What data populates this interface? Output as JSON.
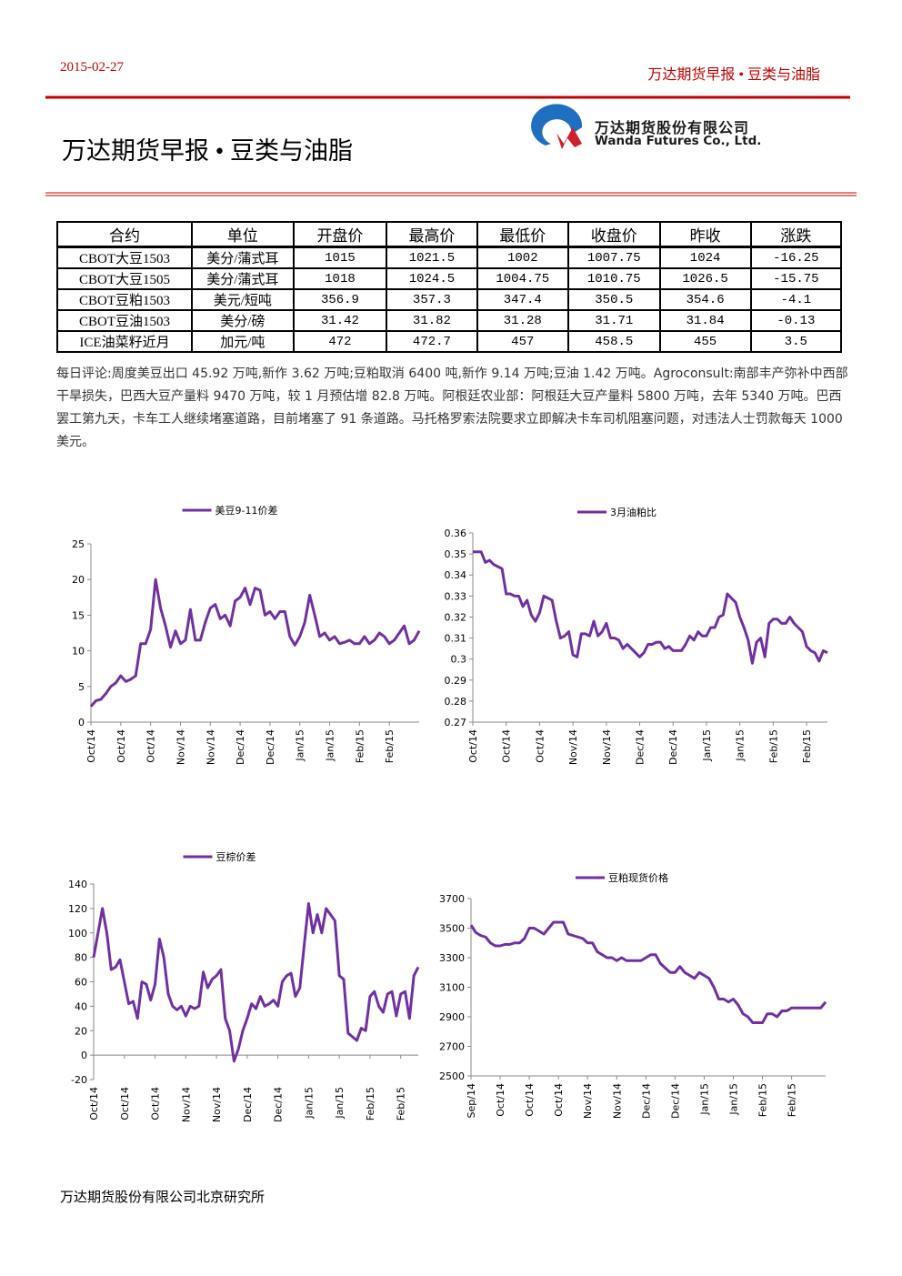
{
  "header": {
    "date": "2015-02-27",
    "right_title": "万达期货早报 • 豆类与油脂"
  },
  "title": "万达期货早报 • 豆类与油脂",
  "logo": {
    "cn": "万达期货股份有限公司",
    "en": "Wanda Futures Co., Ltd."
  },
  "table": {
    "header": [
      "合约",
      "单位",
      "开盘价",
      "最高价",
      "最低价",
      "收盘价",
      "昨收",
      "涨跌"
    ],
    "rows": [
      [
        "CBOT大豆1503",
        "美分/蒲式耳",
        1015,
        1021.5,
        1002,
        1007.75,
        1024,
        -16.25
      ],
      [
        "CBOT大豆1505",
        "美分/蒲式耳",
        1018,
        1024.5,
        1004.75,
        1010.75,
        1026.5,
        -15.75
      ],
      [
        "CBOT豆粕1503",
        "美元/短吨",
        356.9,
        357.3,
        347.4,
        350.5,
        354.6,
        -4.1
      ],
      [
        "CBOT豆油1503",
        "美分/磅",
        31.42,
        31.82,
        31.28,
        31.71,
        31.84,
        -0.13
      ],
      [
        "ICE油菜籽近月",
        "加元/吨",
        472,
        472.7,
        457,
        458.5,
        455,
        3.5
      ]
    ]
  },
  "commentary": "每日评论:周度美豆出口 45.92 万吨,新作 3.62 万吨;豆粕取消 6400 吨,新作 9.14 万吨;豆油 1.42 万吨。Agroconsult:南部丰产弥补中西部干旱损失，巴西大豆产量料 9470 万吨，较 1 月预估增 82.8 万吨。阿根廷农业部：阿根廷大豆产量料 5800 万吨，去年 5340 万吨。巴西罢工第九天，卡车工人继续堵塞道路，目前堵塞了 91 条道路。马托格罗索法院要求立即解决卡车司机阻塞问题，对违法人士罚款每天 1000 美元。",
  "chart_data": [
    {
      "type": "line",
      "legend": "top",
      "series": [
        {
          "name": "美豆9-11价差",
          "color": "#7030a0",
          "values": [
            2.2,
            3,
            3.2,
            4,
            5,
            5.5,
            6.5,
            5.7,
            6,
            6.5,
            11,
            11,
            13,
            20,
            16,
            13.5,
            10.5,
            12.8,
            11,
            11.5,
            15.8,
            11.5,
            11.5,
            14,
            16,
            16.5,
            14.5,
            15,
            13.5,
            17,
            17.5,
            18.8,
            16.5,
            18.8,
            18.5,
            15,
            15.5,
            14.5,
            15.5,
            15.5,
            12,
            10.8,
            12,
            14,
            17.8,
            15,
            12,
            12.5,
            11.5,
            12,
            11,
            11.2,
            11.5,
            11,
            11,
            12,
            11,
            11.5,
            12.5,
            12,
            11,
            11.5,
            12.5,
            13.5,
            11,
            11.5,
            12.8
          ]
        }
      ],
      "xlim": [
        0,
        66
      ],
      "xticks": [
        {
          "value": 0,
          "label": "Oct/14"
        },
        {
          "value": 6,
          "label": "Oct/14"
        },
        {
          "value": 12,
          "label": "Oct/14"
        },
        {
          "value": 18,
          "label": "Nov/14"
        },
        {
          "value": 24,
          "label": "Nov/14"
        },
        {
          "value": 30,
          "label": "Dec/14"
        },
        {
          "value": 36,
          "label": "Dec/14"
        },
        {
          "value": 42,
          "label": "Jan/15"
        },
        {
          "value": 48,
          "label": "Jan/15"
        },
        {
          "value": 54,
          "label": "Feb/15"
        },
        {
          "value": 60,
          "label": "Feb/15"
        }
      ],
      "ylim": [
        0,
        25
      ],
      "yticks": [
        0,
        5,
        10,
        15,
        20,
        25
      ]
    },
    {
      "type": "line",
      "legend": "top",
      "series": [
        {
          "name": "3月油粕比",
          "color": "#7030a0",
          "values": [
            0.351,
            0.351,
            0.351,
            0.346,
            0.347,
            0.345,
            0.344,
            0.343,
            0.331,
            0.331,
            0.33,
            0.33,
            0.325,
            0.328,
            0.321,
            0.318,
            0.322,
            0.33,
            0.329,
            0.328,
            0.318,
            0.31,
            0.311,
            0.313,
            0.302,
            0.301,
            0.312,
            0.312,
            0.311,
            0.318,
            0.311,
            0.313,
            0.317,
            0.31,
            0.31,
            0.309,
            0.305,
            0.307,
            0.305,
            0.303,
            0.301,
            0.303,
            0.307,
            0.307,
            0.308,
            0.308,
            0.305,
            0.306,
            0.304,
            0.304,
            0.304,
            0.307,
            0.311,
            0.309,
            0.313,
            0.311,
            0.311,
            0.315,
            0.315,
            0.32,
            0.321,
            0.331,
            0.329,
            0.327,
            0.32,
            0.315,
            0.309,
            0.298,
            0.308,
            0.31,
            0.301,
            0.317,
            0.319,
            0.319,
            0.317,
            0.317,
            0.32,
            0.317,
            0.315,
            0.313,
            0.306,
            0.304,
            0.303,
            0.299,
            0.304,
            0.303
          ]
        }
      ],
      "xlim": [
        0,
        85
      ],
      "xticks": [
        {
          "value": 0,
          "label": "Oct/14"
        },
        {
          "value": 8,
          "label": "Oct/14"
        },
        {
          "value": 16,
          "label": "Oct/14"
        },
        {
          "value": 24,
          "label": "Nov/14"
        },
        {
          "value": 32,
          "label": "Nov/14"
        },
        {
          "value": 40,
          "label": "Dec/14"
        },
        {
          "value": 48,
          "label": "Dec/14"
        },
        {
          "value": 56,
          "label": "Jan/15"
        },
        {
          "value": 64,
          "label": "Jan/15"
        },
        {
          "value": 72,
          "label": "Feb/15"
        },
        {
          "value": 80,
          "label": "Feb/15"
        }
      ],
      "ylim": [
        0.27,
        0.36
      ],
      "yticks": [
        0.27,
        0.28,
        0.29,
        0.3,
        0.31,
        0.32,
        0.33,
        0.34,
        0.35,
        0.36
      ]
    },
    {
      "type": "line",
      "legend": "top",
      "series": [
        {
          "name": "豆棕价差",
          "color": "#7030a0",
          "values": [
            80,
            100,
            120,
            100,
            70,
            72,
            78,
            60,
            42,
            44,
            30,
            60,
            58,
            45,
            58,
            95,
            80,
            50,
            40,
            37,
            40,
            32,
            40,
            38,
            40,
            68,
            55,
            62,
            65,
            70,
            30,
            20,
            -5,
            5,
            20,
            30,
            42,
            38,
            48,
            40,
            42,
            45,
            40,
            60,
            65,
            67,
            48,
            55,
            90,
            124,
            100,
            115,
            100,
            120,
            115,
            110,
            65,
            62,
            18,
            15,
            12,
            22,
            20,
            48,
            52,
            40,
            35,
            50,
            52,
            32,
            50,
            52,
            30,
            65,
            72
          ]
        }
      ],
      "xlim": [
        0,
        74
      ],
      "xticks": [
        {
          "value": 0,
          "label": "Oct/14"
        },
        {
          "value": 7,
          "label": "Oct/14"
        },
        {
          "value": 14,
          "label": "Oct/14"
        },
        {
          "value": 21,
          "label": "Nov/14"
        },
        {
          "value": 28,
          "label": "Nov/14"
        },
        {
          "value": 35,
          "label": "Dec/14"
        },
        {
          "value": 42,
          "label": "Dec/14"
        },
        {
          "value": 49,
          "label": "Jan/15"
        },
        {
          "value": 56,
          "label": "Jan/15"
        },
        {
          "value": 63,
          "label": "Feb/15"
        },
        {
          "value": 70,
          "label": "Feb/15"
        }
      ],
      "ylim": [
        -20,
        140
      ],
      "yticks": [
        -20,
        0,
        20,
        40,
        60,
        80,
        100,
        120,
        140
      ]
    },
    {
      "type": "line",
      "legend": "top",
      "series": [
        {
          "name": "豆粕现货价格",
          "color": "#7030a0",
          "values": [
            3520,
            3470,
            3450,
            3440,
            3400,
            3380,
            3380,
            3390,
            3390,
            3400,
            3400,
            3430,
            3500,
            3500,
            3480,
            3460,
            3500,
            3540,
            3540,
            3540,
            3460,
            3450,
            3440,
            3430,
            3400,
            3400,
            3340,
            3320,
            3300,
            3300,
            3280,
            3300,
            3280,
            3280,
            3280,
            3280,
            3300,
            3320,
            3320,
            3260,
            3230,
            3200,
            3200,
            3240,
            3200,
            3180,
            3160,
            3200,
            3180,
            3160,
            3100,
            3020,
            3020,
            3000,
            3020,
            2980,
            2920,
            2900,
            2860,
            2860,
            2860,
            2920,
            2920,
            2900,
            2940,
            2940,
            2960,
            2960,
            2960,
            2960,
            2960,
            2960,
            2960,
            3000
          ]
        }
      ],
      "xlim": [
        0,
        73
      ],
      "xticks": [
        {
          "value": 0,
          "label": "Sep/14"
        },
        {
          "value": 6,
          "label": "Oct/14"
        },
        {
          "value": 12,
          "label": "Oct/14"
        },
        {
          "value": 18,
          "label": "Oct/14"
        },
        {
          "value": 24,
          "label": "Nov/14"
        },
        {
          "value": 30,
          "label": "Nov/14"
        },
        {
          "value": 36,
          "label": "Dec/14"
        },
        {
          "value": 42,
          "label": "Dec/14"
        },
        {
          "value": 48,
          "label": "Jan/15"
        },
        {
          "value": 54,
          "label": "Jan/15"
        },
        {
          "value": 60,
          "label": "Feb/15"
        },
        {
          "value": 66,
          "label": "Feb/15"
        }
      ],
      "ylim": [
        2500,
        3700
      ],
      "yticks": [
        2500,
        2700,
        2900,
        3100,
        3300,
        3500,
        3700
      ]
    }
  ],
  "footer": "万达期货股份有限公司北京研究所"
}
